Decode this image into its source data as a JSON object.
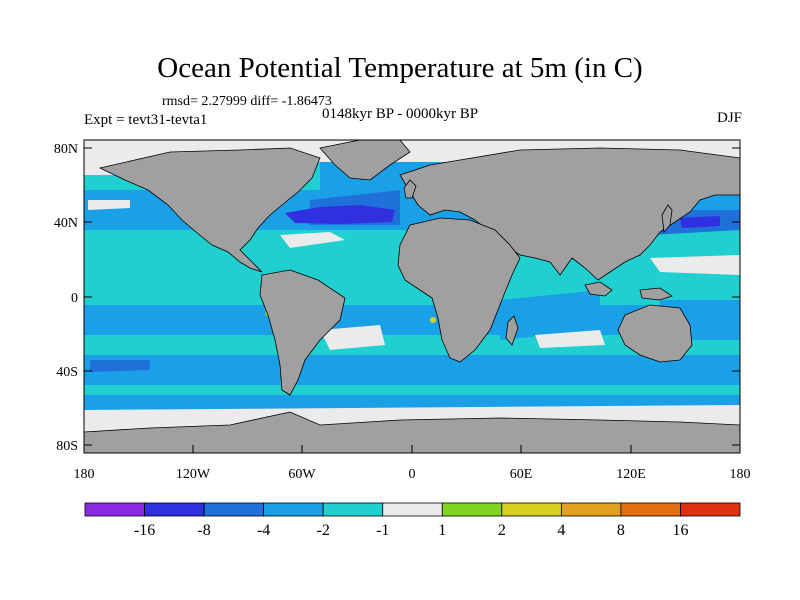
{
  "title": "Ocean Potential Temperature at 5m (in C)",
  "stats": "rmsd= 2.27999 diff= -1.86473",
  "experiment": "Expt = tevt31-tevta1",
  "period": "0148kyr BP - 0000kyr BP",
  "season": "DJF",
  "latitude_labels": [
    "80N",
    "40N",
    "0",
    "40S",
    "80S"
  ],
  "longitude_labels": [
    "180",
    "120W",
    "60W",
    "0",
    "60E",
    "120E",
    "180"
  ],
  "colors": {
    "land": "#a0a0a0",
    "ice": "#e8e8e8",
    "bins": [
      "#8a2be2",
      "#3030e0",
      "#1f70d8",
      "#1aa0e6",
      "#20d0d0",
      "#ebebeb",
      "#7fd520",
      "#d8d020",
      "#e0a020",
      "#e07010",
      "#e03010"
    ]
  },
  "colorbar": {
    "labels": [
      "-16",
      "-8",
      "-4",
      "-2",
      "-1",
      "1",
      "2",
      "4",
      "8",
      "16"
    ]
  }
}
